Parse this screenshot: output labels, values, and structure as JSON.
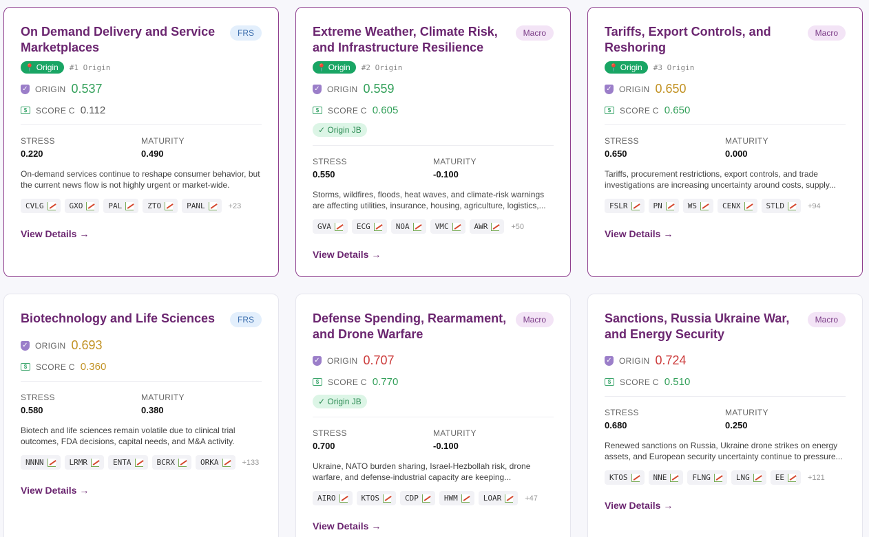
{
  "cards": [
    {
      "title": "On Demand Delivery and Service Marketplaces",
      "tag": "FRS",
      "origin_label": "Origin",
      "rank": "#1 Origin",
      "origin_metric_label": "ORIGIN",
      "origin_value": "0.537",
      "score_label": "SCORE C",
      "score_value": "0.112",
      "stress_label": "STRESS",
      "stress_value": "0.220",
      "maturity_label": "MATURITY",
      "maturity_value": "0.490",
      "description": "On-demand services continue to reshape consumer behavior, but the current news flow is not highly urgent or market-wide.",
      "tickers": [
        "CVLG",
        "GXO",
        "PAL",
        "ZTO",
        "PANL"
      ],
      "more": "+23",
      "details": "View Details →"
    },
    {
      "title": "Extreme Weather, Climate Risk, and Infrastructure Resilience",
      "tag": "Macro",
      "origin_label": "Origin",
      "rank": "#2 Origin",
      "origin_metric_label": "ORIGIN",
      "origin_value": "0.559",
      "score_label": "SCORE C",
      "score_value": "0.605",
      "jb": "✓ Origin JB",
      "stress_label": "STRESS",
      "stress_value": "0.550",
      "maturity_label": "MATURITY",
      "maturity_value": "-0.100",
      "description": "Storms, wildfires, floods, heat waves, and climate-risk warnings are affecting utilities, insurance, housing, agriculture, logistics,...",
      "tickers": [
        "GVA",
        "ECG",
        "NOA",
        "VMC",
        "AWR"
      ],
      "more": "+50",
      "details": "View Details →"
    },
    {
      "title": "Tariffs, Export Controls, and Reshoring",
      "tag": "Macro",
      "origin_label": "Origin",
      "rank": "#3 Origin",
      "origin_metric_label": "ORIGIN",
      "origin_value": "0.650",
      "score_label": "SCORE C",
      "score_value": "0.650",
      "stress_label": "STRESS",
      "stress_value": "0.650",
      "maturity_label": "MATURITY",
      "maturity_value": "0.000",
      "description": "Tariffs, procurement restrictions, export controls, and trade investigations are increasing uncertainty around costs, supply...",
      "tickers": [
        "FSLR",
        "PN",
        "WS",
        "CENX",
        "STLD"
      ],
      "more": "+94",
      "details": "View Details →"
    },
    {
      "title": "Biotechnology and Life Sciences",
      "tag": "FRS",
      "origin_metric_label": "ORIGIN",
      "origin_value": "0.693",
      "score_label": "SCORE C",
      "score_value": "0.360",
      "stress_label": "STRESS",
      "stress_value": "0.580",
      "maturity_label": "MATURITY",
      "maturity_value": "0.380",
      "description": "Biotech and life sciences remain volatile due to clinical trial outcomes, FDA decisions, capital needs, and M&A activity.",
      "tickers": [
        "NNNN",
        "LRMR",
        "ENTA",
        "BCRX",
        "ORKA"
      ],
      "more": "+133",
      "details": "View Details →"
    },
    {
      "title": "Defense Spending, Rearmament, and Drone Warfare",
      "tag": "Macro",
      "origin_metric_label": "ORIGIN",
      "origin_value": "0.707",
      "score_label": "SCORE C",
      "score_value": "0.770",
      "jb": "✓ Origin JB",
      "stress_label": "STRESS",
      "stress_value": "0.700",
      "maturity_label": "MATURITY",
      "maturity_value": "-0.100",
      "description": "Ukraine, NATO burden sharing, Israel-Hezbollah risk, drone warfare, and defense-industrial capacity are keeping...",
      "tickers": [
        "AIRO",
        "KTOS",
        "CDP",
        "HWM",
        "LOAR"
      ],
      "more": "+47",
      "details": "View Details →"
    },
    {
      "title": "Sanctions, Russia Ukraine War, and Energy Security",
      "tag": "Macro",
      "origin_metric_label": "ORIGIN",
      "origin_value": "0.724",
      "score_label": "SCORE C",
      "score_value": "0.510",
      "stress_label": "STRESS",
      "stress_value": "0.680",
      "maturity_label": "MATURITY",
      "maturity_value": "0.250",
      "description": "Renewed sanctions on Russia, Ukraine drone strikes on energy assets, and European security uncertainty continue to pressure...",
      "tickers": [
        "KTOS",
        "NNE",
        "FLNG",
        "LNG",
        "EE"
      ],
      "more": "+121",
      "details": "View Details →"
    }
  ],
  "colors": {
    "accent": "#6b2670",
    "green": "#33a05a",
    "amber": "#c29223",
    "red": "#cc3a3a"
  }
}
